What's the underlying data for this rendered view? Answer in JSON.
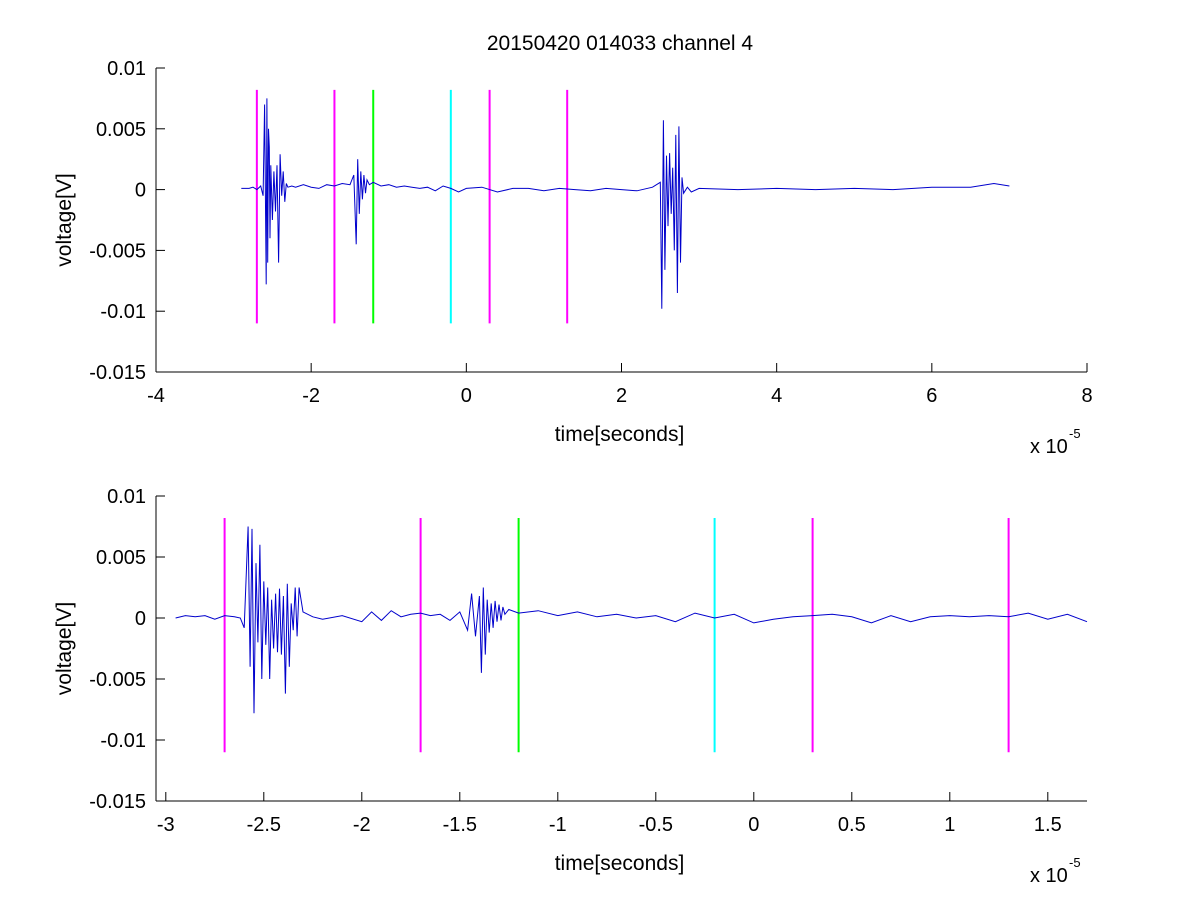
{
  "figure": {
    "title": "20150420 014033 channel 4"
  },
  "chart_data": [
    {
      "type": "line",
      "title": "20150420 014033 channel 4",
      "xlabel": "time[seconds]",
      "ylabel": "voltage[V]",
      "x_exponent_label": "x 10",
      "x_exponent": "-5",
      "xlim": [
        -4,
        8
      ],
      "ylim": [
        -0.015,
        0.01
      ],
      "x_ticks": [
        "-4",
        "-2",
        "0",
        "2",
        "4",
        "6",
        "8"
      ],
      "x_tick_values": [
        -4,
        -2,
        0,
        2,
        4,
        6,
        8
      ],
      "y_ticks": [
        "0.01",
        "0.005",
        "0",
        "-0.005",
        "-0.01",
        "-0.015"
      ],
      "y_tick_values": [
        0.01,
        0.005,
        0,
        -0.005,
        -0.01,
        -0.015
      ],
      "grid": false,
      "series": [
        {
          "color": "#0000cc",
          "x": [
            -2.9,
            -2.8,
            -2.75,
            -2.7,
            -2.65,
            -2.62,
            -2.6,
            -2.58,
            -2.57,
            -2.56,
            -2.55,
            -2.54,
            -2.53,
            -2.52,
            -2.5,
            -2.48,
            -2.46,
            -2.44,
            -2.42,
            -2.4,
            -2.38,
            -2.36,
            -2.34,
            -2.32,
            -2.3,
            -2.25,
            -2.2,
            -2.1,
            -2.0,
            -1.9,
            -1.8,
            -1.7,
            -1.6,
            -1.5,
            -1.45,
            -1.42,
            -1.4,
            -1.38,
            -1.36,
            -1.34,
            -1.32,
            -1.3,
            -1.28,
            -1.25,
            -1.2,
            -1.1,
            -1.0,
            -0.9,
            -0.8,
            -0.7,
            -0.6,
            -0.5,
            -0.4,
            -0.3,
            -0.2,
            -0.1,
            0.0,
            0.2,
            0.4,
            0.6,
            0.8,
            1.0,
            1.2,
            1.4,
            1.6,
            1.8,
            2.0,
            2.2,
            2.4,
            2.5,
            2.52,
            2.54,
            2.56,
            2.58,
            2.6,
            2.62,
            2.64,
            2.66,
            2.68,
            2.7,
            2.72,
            2.74,
            2.76,
            2.78,
            2.8,
            2.85,
            2.9,
            3.0,
            3.5,
            4.0,
            4.5,
            5.0,
            5.5,
            6.0,
            6.5,
            6.8,
            7.0
          ],
          "y": [
            0.0001,
            0.0001,
            0.0002,
            0.0,
            0.0003,
            -0.0005,
            0.007,
            -0.0078,
            0.0075,
            -0.006,
            0.005,
            0.0035,
            -0.004,
            0.002,
            -0.0025,
            0.0015,
            -0.0018,
            0.002,
            -0.006,
            0.0029,
            -0.0005,
            0.0015,
            -0.001,
            0.0005,
            0.0002,
            0.0003,
            0.0002,
            0.0004,
            0.0002,
            0.0001,
            0.0004,
            0.0003,
            0.0005,
            0.0004,
            0.0012,
            -0.0045,
            0.0025,
            -0.002,
            0.0015,
            -0.0008,
            0.0012,
            -0.0003,
            0.0008,
            0.0004,
            0.0006,
            0.0003,
            0.0004,
            0.0002,
            0.0003,
            0.0002,
            0.0001,
            0.0002,
            -0.0001,
            0.0003,
            0.0001,
            -0.0002,
            0.0001,
            0.0002,
            -0.0002,
            0.0001,
            0.0001,
            -0.0001,
            0.0001,
            0.0,
            -0.0001,
            0.0001,
            0.0,
            -0.0001,
            0.0002,
            0.0006,
            -0.0098,
            0.0057,
            -0.0066,
            0.0028,
            -0.003,
            0.003,
            -0.002,
            0.0018,
            -0.005,
            0.0045,
            -0.0085,
            0.0052,
            -0.006,
            0.001,
            -0.0003,
            0.0002,
            -0.0002,
            0.0001,
            0.0,
            0.0001,
            0.0,
            0.0001,
            0.0,
            0.0002,
            0.0002,
            0.0005,
            0.0003
          ]
        }
      ],
      "vlines": [
        {
          "x": -2.7,
          "color": "#ff00ff"
        },
        {
          "x": -1.7,
          "color": "#ff00ff"
        },
        {
          "x": -1.2,
          "color": "#00ff00"
        },
        {
          "x": -0.2,
          "color": "#00ffff"
        },
        {
          "x": 0.3,
          "color": "#ff00ff"
        },
        {
          "x": 1.3,
          "color": "#ff00ff"
        }
      ],
      "vline_range": [
        -0.011,
        0.0082
      ]
    },
    {
      "type": "line",
      "title": "",
      "xlabel": "time[seconds]",
      "ylabel": "voltage[V]",
      "x_exponent_label": "x 10",
      "x_exponent": "-5",
      "xlim": [
        -3.05,
        1.7
      ],
      "ylim": [
        -0.015,
        0.01
      ],
      "x_ticks": [
        "-3",
        "-2.5",
        "-2",
        "-1.5",
        "-1",
        "-0.5",
        "0",
        "0.5",
        "1",
        "1.5"
      ],
      "x_tick_values": [
        -3,
        -2.5,
        -2,
        -1.5,
        -1,
        -0.5,
        0,
        0.5,
        1,
        1.5
      ],
      "y_ticks": [
        "0.01",
        "0.005",
        "0",
        "-0.005",
        "-0.01",
        "-0.015"
      ],
      "y_tick_values": [
        0.01,
        0.005,
        0,
        -0.005,
        -0.01,
        -0.015
      ],
      "grid": false,
      "series": [
        {
          "color": "#0000cc",
          "x": [
            -2.95,
            -2.9,
            -2.85,
            -2.8,
            -2.75,
            -2.7,
            -2.65,
            -2.62,
            -2.6,
            -2.58,
            -2.57,
            -2.56,
            -2.55,
            -2.54,
            -2.53,
            -2.52,
            -2.51,
            -2.5,
            -2.49,
            -2.48,
            -2.47,
            -2.46,
            -2.45,
            -2.44,
            -2.43,
            -2.42,
            -2.41,
            -2.4,
            -2.39,
            -2.38,
            -2.37,
            -2.36,
            -2.35,
            -2.34,
            -2.33,
            -2.32,
            -2.3,
            -2.25,
            -2.2,
            -2.1,
            -2.0,
            -1.95,
            -1.9,
            -1.85,
            -1.8,
            -1.75,
            -1.7,
            -1.65,
            -1.6,
            -1.55,
            -1.5,
            -1.46,
            -1.44,
            -1.42,
            -1.4,
            -1.39,
            -1.38,
            -1.37,
            -1.36,
            -1.35,
            -1.34,
            -1.33,
            -1.32,
            -1.31,
            -1.3,
            -1.29,
            -1.28,
            -1.27,
            -1.25,
            -1.2,
            -1.1,
            -1.0,
            -0.9,
            -0.8,
            -0.7,
            -0.6,
            -0.5,
            -0.4,
            -0.3,
            -0.2,
            -0.1,
            0.0,
            0.1,
            0.2,
            0.3,
            0.4,
            0.5,
            0.6,
            0.7,
            0.8,
            0.9,
            1.0,
            1.1,
            1.2,
            1.3,
            1.4,
            1.5,
            1.6,
            1.7
          ],
          "y": [
            0.0,
            0.0002,
            0.0001,
            0.0002,
            -0.0001,
            0.0002,
            0.0001,
            0.0,
            -0.0008,
            0.0075,
            -0.004,
            0.0073,
            -0.0078,
            0.0045,
            -0.002,
            0.006,
            -0.005,
            0.003,
            -0.0022,
            0.0025,
            -0.005,
            0.0015,
            -0.0025,
            0.002,
            -0.0028,
            0.0024,
            -0.003,
            0.0018,
            -0.0062,
            0.0028,
            -0.004,
            0.0012,
            -0.001,
            0.0025,
            -0.0015,
            0.0025,
            0.0005,
            0.0001,
            -0.0001,
            0.0002,
            -0.0003,
            0.0005,
            -0.0002,
            0.0006,
            0.0001,
            0.0003,
            0.0004,
            0.0002,
            0.0003,
            -0.0002,
            0.0005,
            -0.001,
            0.002,
            -0.0015,
            0.0018,
            -0.0045,
            0.0025,
            -0.003,
            0.0015,
            -0.0012,
            0.0012,
            -0.0008,
            0.0014,
            -0.0003,
            0.0011,
            -0.0002,
            0.0009,
            0.0003,
            0.0007,
            0.0004,
            0.0006,
            0.0002,
            0.0005,
            0.0001,
            0.0003,
            0.0,
            0.0002,
            -0.0003,
            0.0004,
            0.0,
            0.0003,
            -0.0004,
            -0.0001,
            0.0001,
            0.0002,
            0.0003,
            0.0001,
            -0.0004,
            0.0002,
            -0.0003,
            0.0001,
            0.0002,
            0.0001,
            0.0002,
            0.0001,
            0.0004,
            -0.0001,
            0.0003,
            -0.0003
          ]
        }
      ],
      "vlines": [
        {
          "x": -2.7,
          "color": "#ff00ff"
        },
        {
          "x": -1.7,
          "color": "#ff00ff"
        },
        {
          "x": -1.2,
          "color": "#00ff00"
        },
        {
          "x": -0.2,
          "color": "#00ffff"
        },
        {
          "x": 0.3,
          "color": "#ff00ff"
        },
        {
          "x": 1.3,
          "color": "#ff00ff"
        }
      ],
      "vline_range": [
        -0.011,
        0.0082
      ]
    }
  ]
}
